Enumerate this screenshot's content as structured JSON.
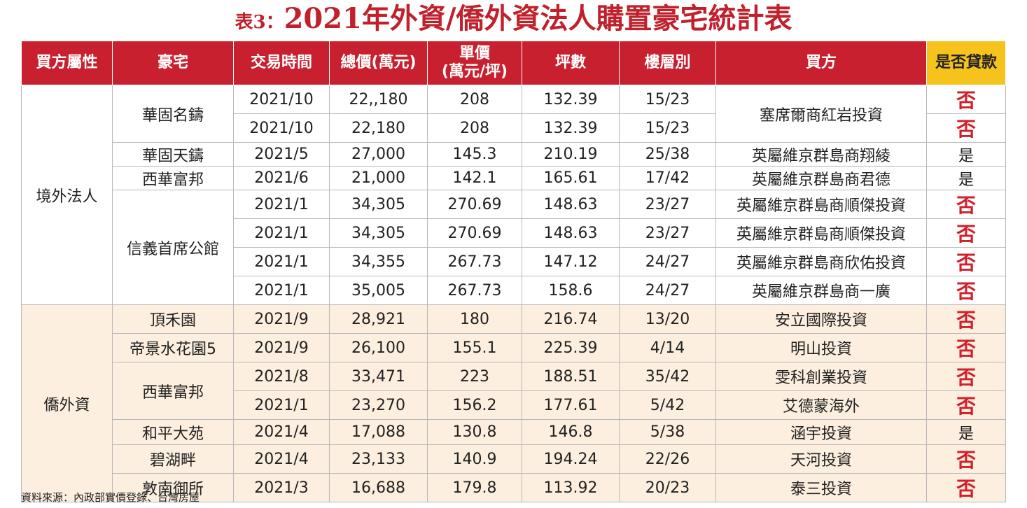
{
  "title": {
    "label": "表3：",
    "text": "2021年外資/僑外資法人購置豪宅統計表"
  },
  "table": {
    "headers": [
      "買方屬性",
      "豪宅",
      "交易時間",
      "總價(萬元)",
      "單價\n(萬元/坪)",
      "坪數",
      "樓層別",
      "買方",
      "是否貸款"
    ],
    "groups": [
      {
        "name": "境外法人",
        "estates": [
          {
            "name": "華固名鑄",
            "buyer": "塞席爾商紅岩投資",
            "rows": [
              {
                "time": "2021/10",
                "total": "22,,180",
                "unit": "208",
                "area": "132.39",
                "floor": "15/23",
                "loan": "否"
              },
              {
                "time": "2021/10",
                "total": "22,180",
                "unit": "208",
                "area": "132.39",
                "floor": "15/23",
                "loan": "否"
              }
            ]
          },
          {
            "name": "華固天鑄",
            "rows": [
              {
                "time": "2021/5",
                "total": "27,000",
                "unit": "145.3",
                "area": "210.19",
                "floor": "25/38",
                "buyer": "英屬維京群島商翔綾",
                "loan": "是"
              }
            ]
          },
          {
            "name": "西華富邦",
            "rows": [
              {
                "time": "2021/6",
                "total": "21,000",
                "unit": "142.1",
                "area": "165.61",
                "floor": "17/42",
                "buyer": "英屬維京群島商君德",
                "loan": "是"
              }
            ]
          },
          {
            "name": "信義首席公館",
            "rows": [
              {
                "time": "2021/1",
                "total": "34,305",
                "unit": "270.69",
                "area": "148.63",
                "floor": "23/27",
                "buyer": "英屬維京群島商順傑投資",
                "loan": "否"
              },
              {
                "time": "2021/1",
                "total": "34,305",
                "unit": "270.69",
                "area": "148.63",
                "floor": "23/27",
                "buyer": "英屬維京群島商順傑投資",
                "loan": "否"
              },
              {
                "time": "2021/1",
                "total": "34,355",
                "unit": "267.73",
                "area": "147.12",
                "floor": "24/27",
                "buyer": "英屬維京群島商欣佑投資",
                "loan": "否"
              },
              {
                "time": "2021/1",
                "total": "35,005",
                "unit": "267.73",
                "area": "158.6",
                "floor": "24/27",
                "buyer": "英屬維京群島商一廣",
                "loan": "否"
              }
            ]
          }
        ]
      },
      {
        "name": "僑外資",
        "estates": [
          {
            "name": "頂禾園",
            "rows": [
              {
                "time": "2021/9",
                "total": "28,921",
                "unit": "180",
                "area": "216.74",
                "floor": "13/20",
                "buyer": "安立國際投資",
                "loan": "否"
              }
            ]
          },
          {
            "name": "帝景水花園5",
            "rows": [
              {
                "time": "2021/9",
                "total": "26,100",
                "unit": "155.1",
                "area": "225.39",
                "floor": "4/14",
                "buyer": "明山投資",
                "loan": "否"
              }
            ]
          },
          {
            "name": "西華富邦",
            "rows": [
              {
                "time": "2021/8",
                "total": "33,471",
                "unit": "223",
                "area": "188.51",
                "floor": "35/42",
                "buyer": "雯科創業投資",
                "loan": "否"
              },
              {
                "time": "2021/1",
                "total": "23,270",
                "unit": "156.2",
                "area": "177.61",
                "floor": "5/42",
                "buyer": "艾德蒙海外",
                "loan": "否"
              }
            ]
          },
          {
            "name": "和平大苑",
            "rows": [
              {
                "time": "2021/4",
                "total": "17,088",
                "unit": "130.8",
                "area": "146.8",
                "floor": "5/38",
                "buyer": "涵宇投資",
                "loan": "是"
              }
            ]
          },
          {
            "name": "碧湖畔",
            "rows": [
              {
                "time": "2021/4",
                "total": "23,133",
                "unit": "140.9",
                "area": "194.24",
                "floor": "22/26",
                "buyer": "天河投資",
                "loan": "否"
              }
            ]
          },
          {
            "name": "敦南御所",
            "rows": [
              {
                "time": "2021/3",
                "total": "16,688",
                "unit": "179.8",
                "area": "113.92",
                "floor": "20/23",
                "buyer": "泰三投資",
                "loan": "否"
              }
            ]
          }
        ]
      }
    ]
  },
  "source": "資料來源：內政部實價登錄、台灣房屋"
}
